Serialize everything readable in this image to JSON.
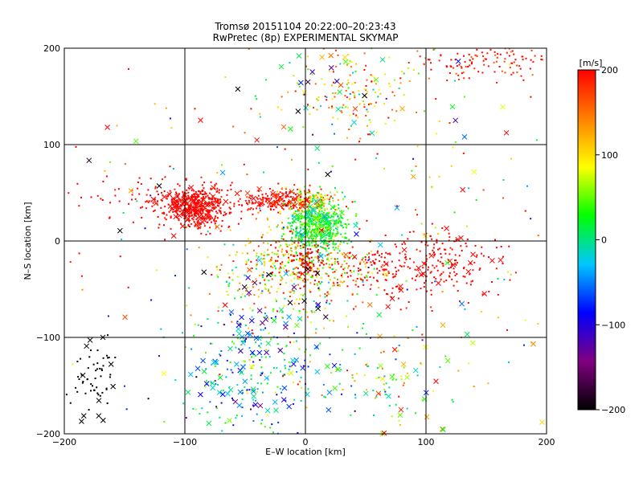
{
  "chart_data": {
    "type": "scatter",
    "title": "Tromsø 20151104 20:22:00–20:23:43",
    "subtitle": "RwPretec (8p) EXPERIMENTAL SKYMAP",
    "xlabel": "E–W location [km]",
    "ylabel": "N–S location [km]",
    "xlim": [
      -200,
      200
    ],
    "ylim": [
      -200,
      200
    ],
    "xticks": [
      -200,
      -100,
      0,
      100,
      200
    ],
    "yticks": [
      -200,
      -100,
      0,
      100,
      200
    ],
    "x_tick_labels": [
      "−200",
      "−100",
      "0",
      "100",
      "200"
    ],
    "y_tick_labels": [
      "−200",
      "−100",
      "0",
      "100",
      "200"
    ],
    "grid": true,
    "colorbar": {
      "label": "[m/s]",
      "range": [
        -200,
        200
      ],
      "ticks": [
        200,
        100,
        0,
        -100,
        -200
      ],
      "tick_labels": [
        "200",
        "100",
        "0",
        "−100",
        "−200"
      ],
      "colors": [
        "#000000",
        "#800080",
        "#0000ff",
        "#00c8ff",
        "#00ff00",
        "#ffff00",
        "#ff8000",
        "#ff0000"
      ]
    },
    "series": [
      {
        "marker": "dot",
        "clusters": [
          {
            "x": -90,
            "y": 35,
            "sx": 14,
            "sy": 10,
            "count": 420,
            "v": 200,
            "vsd": 8
          },
          {
            "x": -20,
            "y": 42,
            "sx": 18,
            "sy": 6,
            "count": 200,
            "v": 195,
            "vsd": 10
          },
          {
            "x": 5,
            "y": 40,
            "sx": 12,
            "sy": 8,
            "count": 120,
            "v": 110,
            "vsd": 40
          },
          {
            "x": 10,
            "y": 15,
            "sx": 12,
            "sy": 14,
            "count": 500,
            "v": 25,
            "vsd": 18
          },
          {
            "x": -10,
            "y": -30,
            "sx": 30,
            "sy": 25,
            "count": 450,
            "v": 90,
            "vsd": 60
          },
          {
            "x": 0,
            "y": -20,
            "sx": 10,
            "sy": 12,
            "count": 120,
            "v": 200,
            "vsd": 5
          },
          {
            "x": 110,
            "y": -20,
            "sx": 25,
            "sy": 20,
            "count": 180,
            "v": 200,
            "vsd": 8
          },
          {
            "x": 60,
            "y": -30,
            "sx": 18,
            "sy": 15,
            "count": 100,
            "v": 200,
            "vsd": 8
          },
          {
            "x": 40,
            "y": 160,
            "sx": 30,
            "sy": 25,
            "count": 160,
            "v": 110,
            "vsd": 60
          },
          {
            "x": 150,
            "y": 185,
            "sx": 30,
            "sy": 10,
            "count": 120,
            "v": 190,
            "vsd": 20
          },
          {
            "x": -130,
            "y": 45,
            "sx": 30,
            "sy": 12,
            "count": 80,
            "v": 200,
            "vsd": 8
          },
          {
            "x": -175,
            "y": -140,
            "sx": 10,
            "sy": 15,
            "count": 50,
            "v": -200,
            "vsd": 5
          },
          {
            "x": -40,
            "y": -130,
            "sx": 35,
            "sy": 40,
            "count": 220,
            "v": -20,
            "vsd": 60
          },
          {
            "x": 60,
            "y": -140,
            "sx": 30,
            "sy": 25,
            "count": 80,
            "v": 60,
            "vsd": 80
          },
          {
            "x": 0,
            "y": 0,
            "sx": 120,
            "sy": 110,
            "count": 250,
            "v": 80,
            "vsd": 120
          }
        ]
      },
      {
        "marker": "cross",
        "clusters": [
          {
            "x": -95,
            "y": 35,
            "sx": 12,
            "sy": 10,
            "count": 60,
            "v": 200,
            "vsd": 8
          },
          {
            "x": -20,
            "y": 45,
            "sx": 20,
            "sy": 6,
            "count": 25,
            "v": 190,
            "vsd": 15
          },
          {
            "x": 10,
            "y": 20,
            "sx": 12,
            "sy": 12,
            "count": 40,
            "v": 20,
            "vsd": 30
          },
          {
            "x": -50,
            "y": -140,
            "sx": 30,
            "sy": 30,
            "count": 70,
            "v": -40,
            "vsd": 50
          },
          {
            "x": 20,
            "y": 150,
            "sx": 25,
            "sy": 30,
            "count": 25,
            "v": 0,
            "vsd": 150
          },
          {
            "x": 80,
            "y": -135,
            "sx": 20,
            "sy": 40,
            "count": 25,
            "v": 90,
            "vsd": 80
          },
          {
            "x": 120,
            "y": -20,
            "sx": 25,
            "sy": 20,
            "count": 20,
            "v": 200,
            "vsd": 8
          },
          {
            "x": -170,
            "y": -160,
            "sx": 12,
            "sy": 25,
            "count": 12,
            "v": -200,
            "vsd": 5
          },
          {
            "x": -10,
            "y": -60,
            "sx": 35,
            "sy": 20,
            "count": 25,
            "v": -120,
            "vsd": 80
          },
          {
            "x": 0,
            "y": 0,
            "sx": 120,
            "sy": 110,
            "count": 70,
            "v": 50,
            "vsd": 130
          }
        ]
      }
    ]
  }
}
